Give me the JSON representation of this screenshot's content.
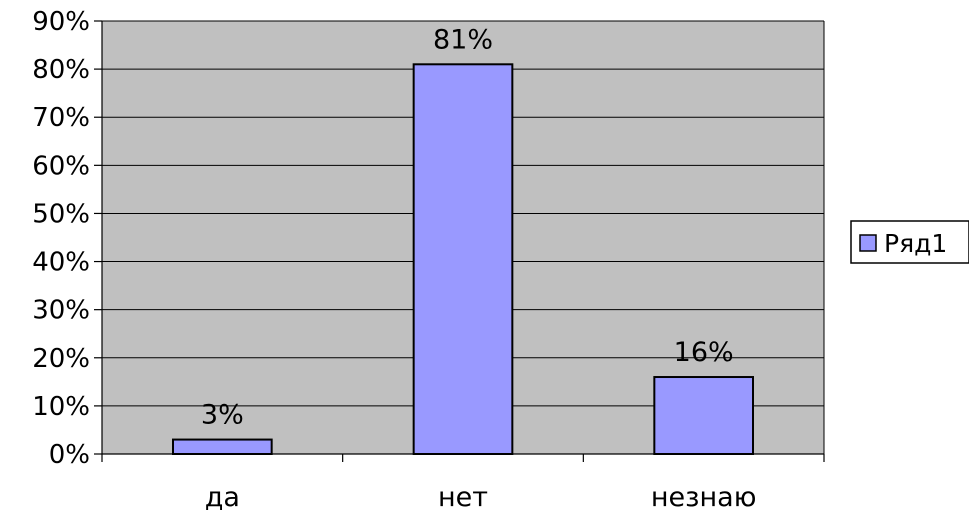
{
  "chart_data": {
    "type": "bar",
    "categories": [
      "да",
      "нет",
      "незнаю"
    ],
    "series": [
      {
        "name": "Ряд1",
        "values": [
          3,
          81,
          16
        ],
        "color": "#9999ff"
      }
    ],
    "data_labels": [
      "3%",
      "81%",
      "16%"
    ],
    "y_ticks": [
      "0%",
      "10%",
      "20%",
      "30%",
      "40%",
      "50%",
      "60%",
      "70%",
      "80%",
      "90%"
    ],
    "ylim": [
      0,
      90
    ],
    "y_unit": "%",
    "grid": true,
    "plot_background": "#c0c0c0",
    "legend": {
      "placement": "right",
      "entries": [
        "Ряд1"
      ]
    },
    "title": "",
    "xlabel": "",
    "ylabel": ""
  }
}
